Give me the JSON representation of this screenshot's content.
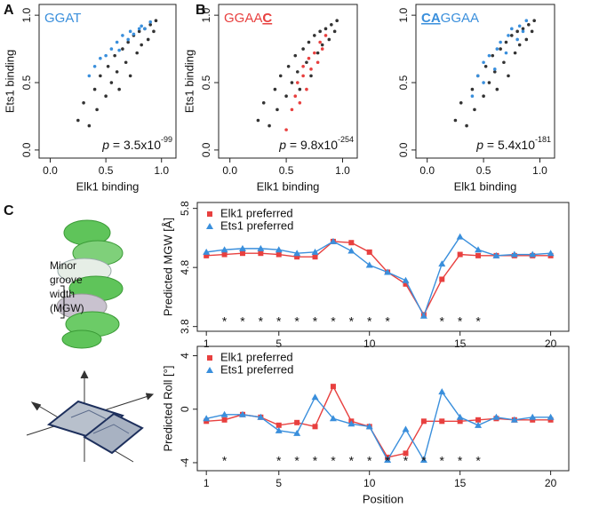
{
  "panel_labels": [
    "A",
    "B",
    "C"
  ],
  "diagram": {
    "mgw_label": [
      "Minor",
      "groove",
      "width",
      "(MGW)"
    ]
  },
  "chart_data": [
    {
      "type": "scatter",
      "x_label": "Elk1 binding",
      "y_label": "Ets1 binding",
      "motif": [
        {
          "text": "GGAT"
        }
      ],
      "motif_color": "#3a8fdc",
      "p": {
        "symbol": "p",
        "text": " = 3.5x10",
        "exponent": "-99"
      },
      "xlim": [
        -0.1,
        1.13
      ],
      "ylim": [
        -0.06,
        1.08
      ],
      "xticks": [
        {
          "value": 0,
          "label": "0.0"
        },
        {
          "value": 0.5,
          "label": "0.5"
        },
        {
          "value": 1,
          "label": "1.0"
        }
      ],
      "yticks": [
        {
          "value": 0,
          "label": "0.0"
        },
        {
          "value": 0.5,
          "label": "0.5"
        },
        {
          "value": 1,
          "label": "1.0"
        }
      ],
      "series": [
        {
          "color": "#333333",
          "x": [
            0.25,
            0.3,
            0.35,
            0.4,
            0.42,
            0.45,
            0.5,
            0.52,
            0.55,
            0.58,
            0.6,
            0.62,
            0.65,
            0.68,
            0.7,
            0.72,
            0.75,
            0.78,
            0.8,
            0.82,
            0.85,
            0.88,
            0.9,
            0.93,
            0.95
          ],
          "values": [
            0.22,
            0.35,
            0.18,
            0.45,
            0.3,
            0.55,
            0.4,
            0.62,
            0.5,
            0.7,
            0.58,
            0.45,
            0.75,
            0.65,
            0.8,
            0.55,
            0.85,
            0.72,
            0.88,
            0.78,
            0.9,
            0.82,
            0.93,
            0.88,
            0.96
          ]
        },
        {
          "color": "#3a8fdc",
          "x": [
            0.35,
            0.4,
            0.45,
            0.5,
            0.55,
            0.6,
            0.62,
            0.65,
            0.7,
            0.72,
            0.75,
            0.8,
            0.82,
            0.85,
            0.9
          ],
          "values": [
            0.55,
            0.62,
            0.68,
            0.7,
            0.75,
            0.8,
            0.74,
            0.85,
            0.82,
            0.88,
            0.86,
            0.9,
            0.92,
            0.9,
            0.95
          ]
        }
      ]
    },
    {
      "type": "scatter",
      "x_label": "Elk1 binding",
      "y_label": "Ets1 binding",
      "motif": [
        {
          "text": "GGAA"
        },
        {
          "text": "C",
          "emph": true
        }
      ],
      "motif_color": "#e8403f",
      "p": {
        "symbol": "p",
        "text": " = 9.8x10",
        "exponent": "-254"
      },
      "xlim": [
        -0.1,
        1.13
      ],
      "ylim": [
        -0.06,
        1.08
      ],
      "xticks": [
        {
          "value": 0,
          "label": "0.0"
        },
        {
          "value": 0.5,
          "label": "0.5"
        },
        {
          "value": 1,
          "label": "1.0"
        }
      ],
      "yticks": [
        {
          "value": 0,
          "label": "0.0"
        },
        {
          "value": 0.5,
          "label": "0.5"
        },
        {
          "value": 1,
          "label": "1.0"
        }
      ],
      "series": [
        {
          "color": "#333333",
          "x": [
            0.25,
            0.3,
            0.35,
            0.4,
            0.42,
            0.45,
            0.5,
            0.52,
            0.55,
            0.58,
            0.6,
            0.62,
            0.65,
            0.68,
            0.7,
            0.72,
            0.75,
            0.78,
            0.8,
            0.82,
            0.85,
            0.88,
            0.9,
            0.93,
            0.95
          ],
          "values": [
            0.22,
            0.35,
            0.18,
            0.45,
            0.3,
            0.55,
            0.4,
            0.62,
            0.5,
            0.7,
            0.58,
            0.45,
            0.75,
            0.65,
            0.8,
            0.55,
            0.85,
            0.72,
            0.88,
            0.78,
            0.9,
            0.82,
            0.93,
            0.88,
            0.96
          ]
        },
        {
          "color": "#e8403f",
          "x": [
            0.5,
            0.55,
            0.58,
            0.6,
            0.62,
            0.65,
            0.65,
            0.68,
            0.7,
            0.72,
            0.75,
            0.78,
            0.8,
            0.82,
            0.85
          ],
          "values": [
            0.15,
            0.3,
            0.4,
            0.5,
            0.35,
            0.55,
            0.62,
            0.45,
            0.68,
            0.6,
            0.72,
            0.65,
            0.8,
            0.75,
            0.85
          ]
        }
      ]
    },
    {
      "type": "scatter",
      "x_label": "Elk1 binding",
      "motif": [
        {
          "text": "CA",
          "emph": true
        },
        {
          "text": "GGAA"
        }
      ],
      "motif_color": "#3a8fdc",
      "p": {
        "symbol": "p",
        "text": " = 5.4x10",
        "exponent": "-181"
      },
      "xlim": [
        -0.1,
        1.13
      ],
      "ylim": [
        -0.06,
        1.08
      ],
      "xticks": [
        {
          "value": 0,
          "label": "0.0"
        },
        {
          "value": 0.5,
          "label": "0.5"
        },
        {
          "value": 1,
          "label": "1.0"
        }
      ],
      "yticks": [
        {
          "value": 0,
          "label": "0.0"
        },
        {
          "value": 0.5,
          "label": "0.5"
        },
        {
          "value": 1,
          "label": "1.0"
        }
      ],
      "series": [
        {
          "color": "#333333",
          "x": [
            0.25,
            0.3,
            0.35,
            0.4,
            0.42,
            0.45,
            0.5,
            0.52,
            0.55,
            0.58,
            0.6,
            0.62,
            0.65,
            0.68,
            0.7,
            0.72,
            0.75,
            0.78,
            0.8,
            0.82,
            0.85,
            0.88,
            0.9,
            0.93,
            0.95
          ],
          "values": [
            0.22,
            0.35,
            0.18,
            0.45,
            0.3,
            0.55,
            0.4,
            0.62,
            0.5,
            0.7,
            0.58,
            0.45,
            0.75,
            0.65,
            0.8,
            0.55,
            0.85,
            0.72,
            0.88,
            0.78,
            0.9,
            0.82,
            0.93,
            0.88,
            0.96
          ]
        },
        {
          "color": "#3a8fdc",
          "x": [
            0.4,
            0.45,
            0.5,
            0.5,
            0.55,
            0.6,
            0.62,
            0.65,
            0.7,
            0.72,
            0.75,
            0.8,
            0.82,
            0.85,
            0.88
          ],
          "values": [
            0.4,
            0.55,
            0.5,
            0.65,
            0.7,
            0.6,
            0.75,
            0.8,
            0.72,
            0.85,
            0.9,
            0.82,
            0.92,
            0.88,
            0.96
          ]
        }
      ]
    },
    {
      "type": "line",
      "y_label": "Predicted MGW [Å]",
      "legend": "top-left",
      "xlim": [
        0.5,
        21
      ],
      "ylim": [
        3.72,
        5.9
      ],
      "xticks": [
        1,
        5,
        10,
        15,
        20
      ],
      "yticks": [
        3.8,
        4.8,
        5.8
      ],
      "x": [
        1,
        2,
        3,
        4,
        5,
        6,
        7,
        8,
        9,
        10,
        11,
        12,
        13,
        14,
        15,
        16,
        17,
        18,
        19,
        20
      ],
      "series": [
        {
          "name": "Elk1 preferred",
          "color": "#e8403f",
          "marker": "square",
          "values": [
            5.0,
            5.02,
            5.04,
            5.04,
            5.02,
            4.98,
            4.98,
            5.24,
            5.22,
            5.06,
            4.72,
            4.52,
            4.0,
            4.6,
            5.02,
            5.0,
            5.0,
            5.0,
            5.0,
            5.0
          ]
        },
        {
          "name": "Ets1 preferred",
          "color": "#3a8fdc",
          "marker": "triangle",
          "values": [
            5.06,
            5.1,
            5.12,
            5.12,
            5.1,
            5.04,
            5.06,
            5.24,
            5.08,
            4.84,
            4.72,
            4.58,
            3.98,
            4.86,
            5.32,
            5.1,
            5.0,
            5.02,
            5.02,
            5.04
          ]
        }
      ],
      "significance": {
        "symbol": "*",
        "positions": [
          2,
          3,
          4,
          5,
          6,
          7,
          8,
          9,
          10,
          11,
          14,
          15,
          16
        ]
      }
    },
    {
      "type": "line",
      "y_label": "Predicted Roll [°]",
      "x_label": "Position",
      "legend": "top-left",
      "xlim": [
        0.5,
        21
      ],
      "ylim": [
        -4.6,
        4.7
      ],
      "xticks": [
        1,
        5,
        10,
        15,
        20
      ],
      "yticks": [
        -4,
        0,
        4
      ],
      "x": [
        1,
        2,
        3,
        4,
        5,
        6,
        7,
        8,
        9,
        10,
        11,
        12,
        13,
        14,
        15,
        16,
        17,
        18,
        19,
        20
      ],
      "series": [
        {
          "name": "Elk1 preferred",
          "color": "#e8403f",
          "marker": "square",
          "values": [
            -0.9,
            -0.8,
            -0.4,
            -0.6,
            -1.2,
            -1.0,
            -1.3,
            1.7,
            -0.9,
            -1.3,
            -3.6,
            -3.3,
            -0.9,
            -0.9,
            -0.9,
            -0.8,
            -0.7,
            -0.8,
            -0.8,
            -0.8
          ]
        },
        {
          "name": "Ets1 preferred",
          "color": "#3a8fdc",
          "marker": "triangle",
          "values": [
            -0.7,
            -0.4,
            -0.4,
            -0.6,
            -1.6,
            -1.8,
            0.9,
            -0.7,
            -1.1,
            -1.3,
            -3.8,
            -1.5,
            -3.8,
            1.3,
            -0.6,
            -1.2,
            -0.6,
            -0.8,
            -0.6,
            -0.6
          ]
        }
      ],
      "significance": {
        "symbol": "*",
        "positions": [
          2,
          5,
          6,
          7,
          8,
          9,
          10,
          11,
          12,
          13,
          14,
          15,
          16
        ]
      }
    }
  ]
}
